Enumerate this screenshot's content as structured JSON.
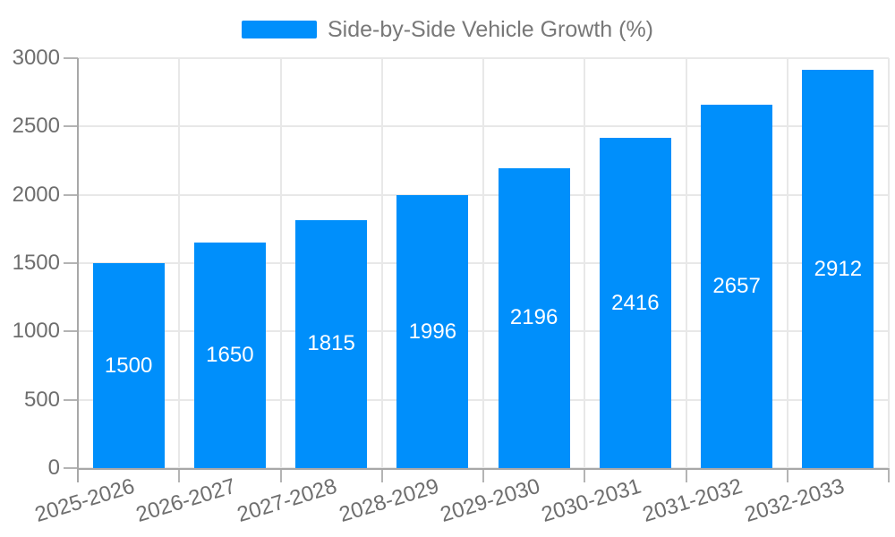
{
  "legend": {
    "label": "Side-by-Side Vehicle Growth (%)"
  },
  "chart_data": {
    "type": "bar",
    "title": "Side-by-Side Vehicle Growth (%)",
    "categories": [
      "2025-2026",
      "2026-2027",
      "2027-2028",
      "2028-2029",
      "2029-2030",
      "2030-2031",
      "2031-2032",
      "2032-2033"
    ],
    "series": [
      {
        "name": "Side-by-Side Vehicle Growth (%)",
        "values": [
          1500,
          1650,
          1815,
          1996,
          2196,
          2416,
          2657,
          2912
        ]
      }
    ],
    "xlabel": "",
    "ylabel": "",
    "ylim": [
      0,
      3000
    ],
    "yticks": [
      0,
      500,
      1000,
      1500,
      2000,
      2500,
      3000
    ],
    "grid": true,
    "legend_position": "top-center",
    "data_labels": "inside-center",
    "colors": {
      "bar": "#008FFB",
      "data_label": "#FFFFFF",
      "axis_label": "#6E6E6E",
      "legend_text": "#787878",
      "gridline": "#E8E8E8",
      "tick": "#B4B4B4",
      "axis_line": "#A8A8A8",
      "background": "#FFFFFF"
    }
  }
}
